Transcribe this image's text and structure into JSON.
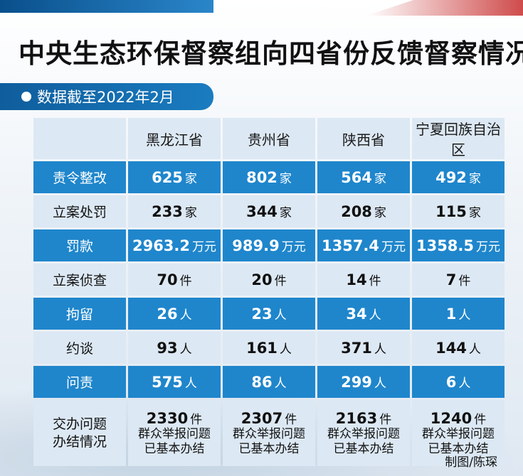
{
  "title": "中央生态环保督察组向四省份反馈督察情况",
  "subtitle": "数据截至2022年2月",
  "credit": "制图/陈琛",
  "chart_data": {
    "type": "table",
    "columns": [
      "黑龙江省",
      "贵州省",
      "陕西省",
      "宁夏回族自治区"
    ],
    "rows": [
      {
        "label": "责令整改",
        "cells": [
          {
            "value": "625",
            "unit": "家"
          },
          {
            "value": "802",
            "unit": "家"
          },
          {
            "value": "564",
            "unit": "家"
          },
          {
            "value": "492",
            "unit": "家"
          }
        ]
      },
      {
        "label": "立案处罚",
        "cells": [
          {
            "value": "233",
            "unit": "家"
          },
          {
            "value": "344",
            "unit": "家"
          },
          {
            "value": "208",
            "unit": "家"
          },
          {
            "value": "115",
            "unit": "家"
          }
        ]
      },
      {
        "label": "罚款",
        "cells": [
          {
            "value": "2963.2",
            "unit": "万元"
          },
          {
            "value": "989.9",
            "unit": "万元"
          },
          {
            "value": "1357.4",
            "unit": "万元"
          },
          {
            "value": "1358.5",
            "unit": "万元"
          }
        ]
      },
      {
        "label": "立案侦查",
        "cells": [
          {
            "value": "70",
            "unit": "件"
          },
          {
            "value": "20",
            "unit": "件"
          },
          {
            "value": "14",
            "unit": "件"
          },
          {
            "value": "7",
            "unit": "件"
          }
        ]
      },
      {
        "label": "拘留",
        "cells": [
          {
            "value": "26",
            "unit": "人"
          },
          {
            "value": "23",
            "unit": "人"
          },
          {
            "value": "34",
            "unit": "人"
          },
          {
            "value": "1",
            "unit": "人"
          }
        ]
      },
      {
        "label": "约谈",
        "cells": [
          {
            "value": "93",
            "unit": "人"
          },
          {
            "value": "161",
            "unit": "人"
          },
          {
            "value": "371",
            "unit": "人"
          },
          {
            "value": "144",
            "unit": "人"
          }
        ]
      },
      {
        "label": "问责",
        "cells": [
          {
            "value": "575",
            "unit": "人"
          },
          {
            "value": "86",
            "unit": "人"
          },
          {
            "value": "299",
            "unit": "人"
          },
          {
            "value": "6",
            "unit": "人"
          }
        ]
      }
    ],
    "last_row": {
      "label_line1": "交办问题",
      "label_line2": "办结情况",
      "cells": [
        {
          "value": "2330",
          "unit": "件",
          "note1": "群众举报问题",
          "note2": "已基本办结"
        },
        {
          "value": "2307",
          "unit": "件",
          "note1": "群众举报问题",
          "note2": "已基本办结"
        },
        {
          "value": "2163",
          "unit": "件",
          "note1": "群众举报问题",
          "note2": "已基本办结"
        },
        {
          "value": "1240",
          "unit": "件",
          "note1": "群众举报问题",
          "note2": "已基本办结"
        }
      ]
    },
    "colors": {
      "blue_row": "#1f86cc",
      "light_row": "#dce8f3"
    }
  }
}
